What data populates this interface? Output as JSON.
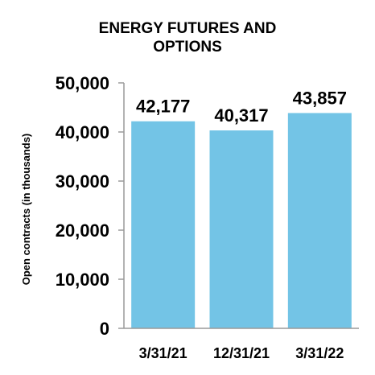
{
  "chart_data": {
    "type": "bar",
    "title": [
      "ENERGY FUTURES AND",
      "OPTIONS"
    ],
    "ylabel": "Open contracts (in thousands)",
    "xlabel": "",
    "categories": [
      "3/31/21",
      "12/31/21",
      "3/31/22"
    ],
    "values": [
      42177,
      40317,
      43857
    ],
    "data_labels": [
      "42,177",
      "40,317",
      "43,857"
    ],
    "ylim": [
      0,
      50000
    ],
    "yticks": [
      0,
      10000,
      20000,
      30000,
      40000,
      50000
    ],
    "ytick_labels": [
      "0",
      "10,000",
      "20,000",
      "30,000",
      "40,000",
      "50,000"
    ],
    "bar_color": "#73C4E6",
    "axis_color": "#9A9A9A",
    "grid": false,
    "legend": "none"
  }
}
